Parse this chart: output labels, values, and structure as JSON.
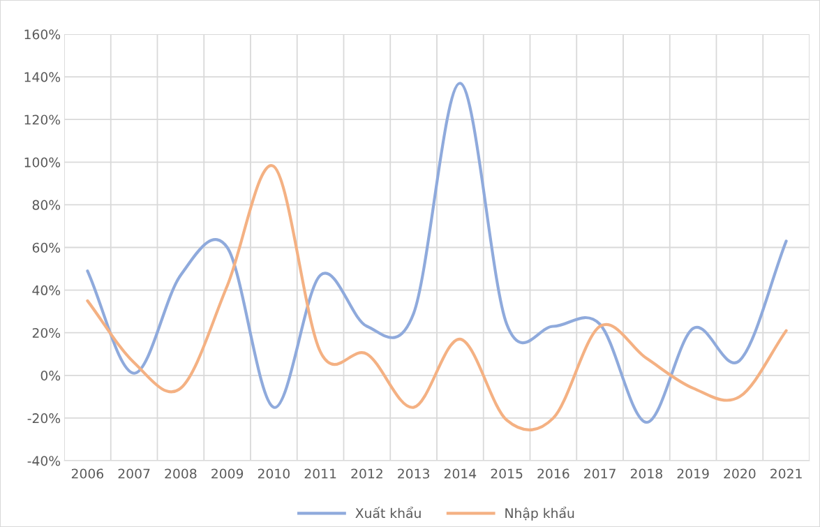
{
  "chart_data": {
    "type": "line",
    "categories": [
      "2006",
      "2007",
      "2008",
      "2009",
      "2010",
      "2011",
      "2012",
      "2013",
      "2014",
      "2015",
      "2016",
      "2017",
      "2018",
      "2019",
      "2020",
      "2021"
    ],
    "series": [
      {
        "name": "Xuất khẩu",
        "color": "#8faadc",
        "values": [
          49,
          1,
          47,
          60,
          -15,
          47,
          23,
          29,
          137,
          24,
          23,
          24,
          -22,
          22,
          7,
          63
        ]
      },
      {
        "name": "Nhập khẩu",
        "color": "#f4b183",
        "values": [
          35,
          6,
          -6,
          42,
          98,
          11,
          10,
          -15,
          17,
          -21,
          -20,
          23,
          8,
          -6,
          -10,
          21
        ]
      }
    ],
    "ylim": [
      -40,
      160
    ],
    "yticks": [
      {
        "value": -40,
        "label": "-40%"
      },
      {
        "value": -20,
        "label": "-20%"
      },
      {
        "value": 0,
        "label": "0%"
      },
      {
        "value": 20,
        "label": "20%"
      },
      {
        "value": 40,
        "label": "40%"
      },
      {
        "value": 60,
        "label": "60%"
      },
      {
        "value": 80,
        "label": "80%"
      },
      {
        "value": 100,
        "label": "100%"
      },
      {
        "value": 120,
        "label": "120%"
      },
      {
        "value": 140,
        "label": "140%"
      },
      {
        "value": 160,
        "label": "160%"
      }
    ],
    "grid": true,
    "legend": "bottom",
    "marker": "none",
    "line_style": "solid"
  }
}
